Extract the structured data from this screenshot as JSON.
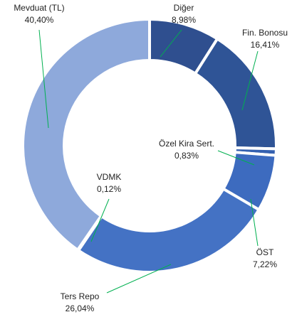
{
  "chart_data": {
    "type": "donut",
    "categories": [
      "Diğer",
      "Fin. Bonosu",
      "Özel Kira Sert.",
      "ÖST",
      "Ters Repo",
      "VDMK",
      "Mevduat (TL)"
    ],
    "values": [
      8.98,
      16.41,
      0.83,
      7.22,
      26.04,
      0.12,
      40.4
    ],
    "value_labels": [
      "8,98%",
      "16,41%",
      "0,83%",
      "7,22%",
      "26,04%",
      "0,12%",
      "40,40%"
    ],
    "colors": [
      "#2f4f8f",
      "#2f5496",
      "#3561b0",
      "#3d6bbf",
      "#4472c4",
      "#6a8fd6",
      "#8ea9db"
    ]
  }
}
